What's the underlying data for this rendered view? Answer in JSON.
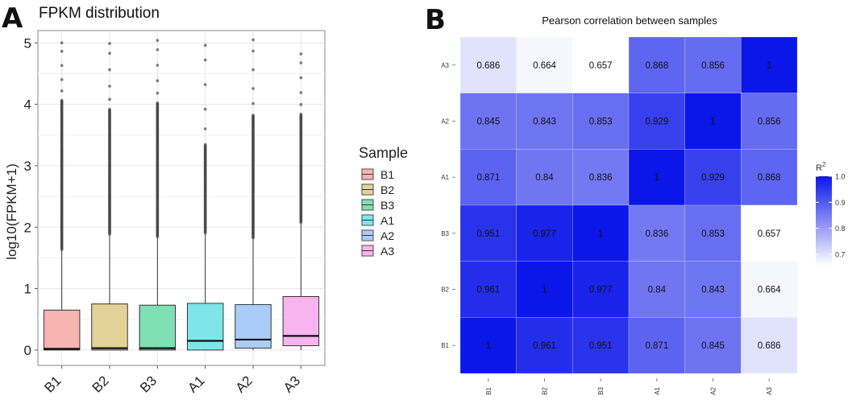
{
  "chart_data": [
    {
      "type": "box",
      "panel_label": "A",
      "title": "FPKM distribution",
      "xlabel": "",
      "ylabel": "log10(FPKM+1)",
      "ylim": [
        -0.25,
        5.2
      ],
      "yticks": [
        "0",
        "1",
        "2",
        "3",
        "4",
        "5"
      ],
      "ytick_values": [
        0,
        1,
        2,
        3,
        4,
        5
      ],
      "grid": true,
      "categories": [
        "B1",
        "B2",
        "B3",
        "A1",
        "A2",
        "A3"
      ],
      "colors": [
        "#f8b4b0",
        "#e3d398",
        "#7fe0b4",
        "#7ee6e8",
        "#a9cdf6",
        "#f7b4ee"
      ],
      "boxes": [
        {
          "name": "B1",
          "q1": 0.0,
          "median": 0.02,
          "q3": 0.65,
          "whisker_low": 0.0,
          "whisker_high": 1.62,
          "outlier_max": 5.0,
          "dense_to": 4.08
        },
        {
          "name": "B2",
          "q1": 0.0,
          "median": 0.03,
          "q3": 0.75,
          "whisker_low": 0.0,
          "whisker_high": 1.87,
          "outlier_max": 4.99,
          "dense_to": 3.92
        },
        {
          "name": "B3",
          "q1": 0.0,
          "median": 0.03,
          "q3": 0.73,
          "whisker_low": 0.0,
          "whisker_high": 1.83,
          "outlier_max": 5.04,
          "dense_to": 4.03
        },
        {
          "name": "A1",
          "q1": 0.0,
          "median": 0.15,
          "q3": 0.76,
          "whisker_low": 0.0,
          "whisker_high": 1.89,
          "outlier_max": 4.96,
          "dense_to": 3.36
        },
        {
          "name": "A2",
          "q1": 0.03,
          "median": 0.17,
          "q3": 0.74,
          "whisker_low": 0.0,
          "whisker_high": 1.81,
          "outlier_max": 5.05,
          "dense_to": 3.83
        },
        {
          "name": "A3",
          "q1": 0.07,
          "median": 0.23,
          "q3": 0.87,
          "whisker_low": 0.0,
          "whisker_high": 2.06,
          "outlier_max": 4.82,
          "dense_to": 3.85
        }
      ],
      "legend": {
        "title": "Sample",
        "entries": [
          "B1",
          "B2",
          "B3",
          "A1",
          "A2",
          "A3"
        ],
        "position": "right"
      }
    },
    {
      "type": "heatmap",
      "panel_label": "B",
      "title": "Pearson correlation between samples",
      "x_categories": [
        "B1",
        "B2",
        "B3",
        "A1",
        "A2",
        "A3"
      ],
      "y_categories_top_to_bottom": [
        "A3",
        "A2",
        "A1",
        "B3",
        "B2",
        "B1"
      ],
      "values": [
        [
          "0.686",
          "0.664",
          "0.657",
          "0.868",
          "0.856",
          "1"
        ],
        [
          "0.845",
          "0.843",
          "0.853",
          "0.929",
          "1",
          "0.856"
        ],
        [
          "0.871",
          "0.84",
          "0.836",
          "1",
          "0.929",
          "0.868"
        ],
        [
          "0.951",
          "0.977",
          "1",
          "0.836",
          "0.853",
          "0.657"
        ],
        [
          "0.961",
          "1",
          "0.977",
          "0.84",
          "0.843",
          "0.664"
        ],
        [
          "1",
          "0.961",
          "0.951",
          "0.871",
          "0.845",
          "0.686"
        ]
      ],
      "color_scale": {
        "low_color": "#ffffff",
        "high_color": "#0b16e8",
        "min": 0.657,
        "max": 1.0
      },
      "colorbar": {
        "title": "R",
        "title_superscript": "2",
        "ticks": [
          "1.0",
          "0.9",
          "0.8",
          "0.7"
        ],
        "tick_values": [
          1.0,
          0.9,
          0.8,
          0.7
        ],
        "position": "right"
      }
    }
  ]
}
